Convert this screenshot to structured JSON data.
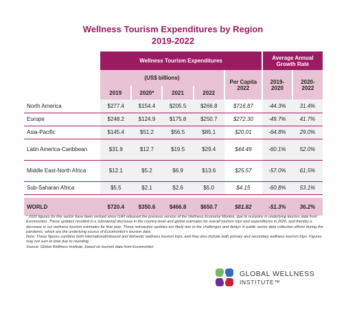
{
  "title": {
    "line1": "Wellness Tourism Expenditures by Region",
    "line2": "2019-2022"
  },
  "table": {
    "group_header": "Wellness Tourism Expenditures",
    "growth_header": "Average Annual Growth Rate",
    "units": "(US$ billions)",
    "per_capita_header": "Per Capita 2022",
    "columns": [
      "2019",
      "2020*",
      "2021",
      "2022",
      "2019-2020",
      "2020-2022"
    ],
    "rows": [
      {
        "region": "North America",
        "y2019": "$277.4",
        "y2020": "$154.4",
        "y2021": "$205.5",
        "y2022": "$266.8",
        "per_capita": "$716.87",
        "g1": "-44.3%",
        "g2": "31.4%"
      },
      {
        "region": "Europe",
        "y2019": "$248.2",
        "y2020": "$124.9",
        "y2021": "$175.8",
        "y2022": "$250.7",
        "per_capita": "$272.30",
        "g1": "-49.7%",
        "g2": "41.7%"
      },
      {
        "region": "Asia-Pacific",
        "y2019": "$145.4",
        "y2020": "$51.2",
        "y2021": "$56.5",
        "y2022": "$85.1",
        "per_capita": "$20.01",
        "g1": "-64.8%",
        "g2": "29.0%"
      },
      {
        "region": "Latin America-Caribbean",
        "y2019": "$31.9",
        "y2020": "$12.7",
        "y2021": "$19.5",
        "y2022": "$29.4",
        "per_capita": "$44.49",
        "g1": "-60.1%",
        "g2": "52.0%"
      },
      {
        "region": "Middle East-North Africa",
        "y2019": "$12.1",
        "y2020": "$5.2",
        "y2021": "$6.9",
        "y2022": "$13.6",
        "per_capita": "$25.57",
        "g1": "-57.0%",
        "g2": "61.5%"
      },
      {
        "region": "Sub-Saharan Africa",
        "y2019": "$5.5",
        "y2020": "$2.1",
        "y2021": "$2.6",
        "y2022": "$5.0",
        "per_capita": "$4.15",
        "g1": "-60.8%",
        "g2": "53.1%"
      }
    ],
    "world": {
      "region": "WORLD",
      "y2019": "$720.4",
      "y2020": "$350.6",
      "y2021": "$466.8",
      "y2022": "$650.7",
      "per_capita": "$81.82",
      "g1": "-51.3%",
      "g2": "36.2%"
    }
  },
  "notes": {
    "n1": "* 2020 figures for this sector have been revised since GWI released the previous version of the Wellness Economy Monitor, due to revisions in underlying tourism data from Euromonitor. These updates resulted in a substantial decrease in the country-level and global estimates for overall tourism trips and expenditures in 2020, and thereby a decrease in our wellness tourism estimates for that year. These retroactive updates are likely due to the challenges and delays in public sector data collection efforts during the pandemic, which are the underlying source of Euromonitor's tourism data.",
    "n2": "Note: These figures combine both international/inbound and domestic wellness tourism trips, and they also include both primary and secondary wellness tourism trips. Figures may not sum to total due to rounding.",
    "n3": "Source: Global Wellness Institute, based on tourism data from Euromonitor."
  },
  "logo": {
    "line1": "GLOBAL WELLNESS",
    "line2": "INSTITUTE™"
  },
  "colors": {
    "accent": "#9b1b63",
    "accent_light": "#e8c3d6",
    "logo_green": "#7bb661",
    "logo_blue": "#2e6db4",
    "logo_purple": "#6d2f8e",
    "logo_red": "#c8203a"
  }
}
